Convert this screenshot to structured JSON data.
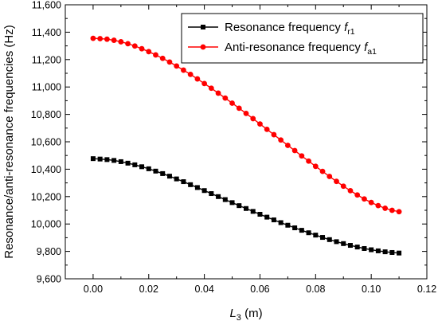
{
  "chart_data": {
    "type": "line",
    "xlabel": {
      "main": "L",
      "sub": "3",
      "unit": " (m)"
    },
    "ylabel": "Resonance/anti-resonance frequencies (Hz)",
    "xlim": [
      -0.01,
      0.12
    ],
    "ylim": [
      9600,
      11600
    ],
    "xticks": [
      0.0,
      0.02,
      0.04,
      0.06,
      0.08,
      0.1,
      0.12
    ],
    "xtick_labels": [
      "0.00",
      "0.02",
      "0.04",
      "0.06",
      "0.08",
      "0.10",
      "0.12"
    ],
    "yticks": [
      9600,
      9800,
      10000,
      10200,
      10400,
      10600,
      10800,
      11000,
      11200,
      11400,
      11600
    ],
    "ytick_labels": [
      "9,600",
      "9,800",
      "10,000",
      "10,200",
      "10,400",
      "10,600",
      "10,800",
      "11,000",
      "11,200",
      "11,400",
      "11,600"
    ],
    "legend": "top-right",
    "x": [
      0.0,
      0.0025,
      0.005,
      0.0075,
      0.01,
      0.0125,
      0.015,
      0.0175,
      0.02,
      0.0225,
      0.025,
      0.0275,
      0.03,
      0.0325,
      0.035,
      0.0375,
      0.04,
      0.0425,
      0.045,
      0.0475,
      0.05,
      0.0525,
      0.055,
      0.0575,
      0.06,
      0.0625,
      0.065,
      0.0675,
      0.07,
      0.0725,
      0.075,
      0.0775,
      0.08,
      0.0825,
      0.085,
      0.0875,
      0.09,
      0.0925,
      0.095,
      0.0975,
      0.1,
      0.1025,
      0.105,
      0.1075,
      0.11
    ],
    "series": [
      {
        "label": {
          "main": "Resonance frequency ",
          "italic": "f",
          "sub": "r1"
        },
        "color": "#000000",
        "marker": "square",
        "values": [
          10477,
          10474,
          10470,
          10464,
          10455,
          10444,
          10432,
          10418,
          10403,
          10386,
          10368,
          10349,
          10329,
          10309,
          10287,
          10266,
          10244,
          10222,
          10200,
          10178,
          10156,
          10134,
          10113,
          10092,
          10071,
          10050,
          10030,
          10010,
          9991,
          9972,
          9954,
          9936,
          9919,
          9902,
          9886,
          9871,
          9857,
          9844,
          9832,
          9821,
          9812,
          9804,
          9797,
          9792,
          9788
        ]
      },
      {
        "label": {
          "main": "Anti-resonance frequency ",
          "italic": "f",
          "sub": "a1"
        },
        "color": "#ff0000",
        "marker": "circle",
        "values": [
          11355,
          11353,
          11349,
          11341,
          11330,
          11316,
          11299,
          11279,
          11258,
          11234,
          11209,
          11182,
          11153,
          11123,
          11092,
          11059,
          11025,
          10991,
          10955,
          10919,
          10882,
          10845,
          10807,
          10769,
          10730,
          10691,
          10652,
          10613,
          10574,
          10536,
          10497,
          10459,
          10421,
          10384,
          10347,
          10311,
          10276,
          10243,
          10212,
          10183,
          10157,
          10134,
          10115,
          10100,
          10090
        ]
      }
    ]
  }
}
